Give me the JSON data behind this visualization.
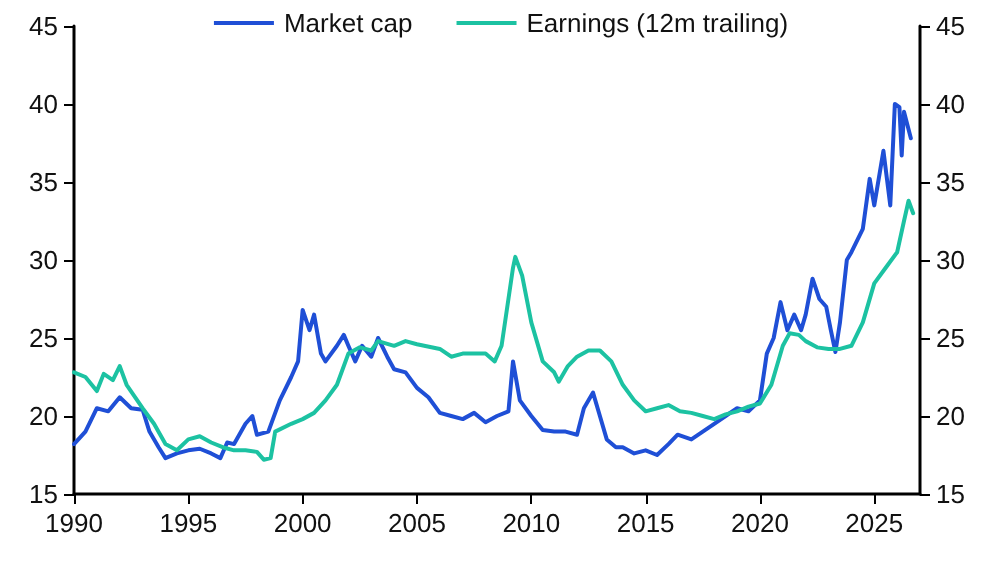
{
  "chart_data": {
    "type": "line",
    "xlim": [
      1990,
      2027
    ],
    "xticks": [
      1990,
      1995,
      2000,
      2005,
      2010,
      2015,
      2020,
      2025
    ],
    "ylim": [
      15,
      45
    ],
    "yticks": [
      15,
      20,
      25,
      30,
      35,
      40,
      45
    ],
    "y2lim": [
      15,
      45
    ],
    "y2ticks": [
      15,
      20,
      25,
      30,
      35,
      40,
      45
    ],
    "grid": false,
    "legend": "top",
    "marker": "none",
    "line_style": "solid",
    "series": [
      {
        "name": "Market cap",
        "color": "#1f4fd6",
        "x": [
          1990,
          1990.5,
          1991,
          1991.5,
          1992,
          1992.5,
          1993,
          1993.3,
          1993.7,
          1994,
          1994.5,
          1995,
          1995.5,
          1996,
          1996.4,
          1996.7,
          1997,
          1997.5,
          1997.8,
          1998,
          1998.5,
          1999,
          1999.5,
          1999.8,
          2000,
          2000.3,
          2000.5,
          2000.8,
          2001,
          2001.5,
          2001.8,
          2002,
          2002.3,
          2002.6,
          2003,
          2003.3,
          2003.7,
          2004,
          2004.5,
          2005,
          2005.5,
          2006,
          2006.5,
          2007,
          2007.5,
          2008,
          2008.5,
          2009,
          2009.2,
          2009.5,
          2010,
          2010.5,
          2011,
          2011.5,
          2012,
          2012.3,
          2012.7,
          2013,
          2013.3,
          2013.7,
          2014,
          2014.5,
          2015,
          2015.5,
          2016,
          2016.4,
          2017,
          2017.5,
          2018,
          2018.5,
          2019,
          2019.5,
          2020,
          2020.3,
          2020.6,
          2020.9,
          2021.2,
          2021.5,
          2021.8,
          2022,
          2022.3,
          2022.6,
          2022.9,
          2023.1,
          2023.3,
          2023.5,
          2023.8,
          2024,
          2024.5,
          2024.8,
          2025,
          2025.4,
          2025.7,
          2025.9,
          2026.1,
          2026.2,
          2026.3,
          2026.6
        ],
        "values": [
          18.2,
          19,
          20.5,
          20.3,
          21.2,
          20.5,
          20.4,
          19,
          18,
          17.3,
          17.6,
          17.8,
          17.9,
          17.6,
          17.3,
          18.3,
          18.2,
          19.5,
          20,
          18.8,
          19,
          21,
          22.5,
          23.5,
          26.8,
          25.5,
          26.5,
          24,
          23.5,
          24.5,
          25.2,
          24.5,
          23.5,
          24.5,
          23.8,
          25,
          23.8,
          23,
          22.8,
          21.8,
          21.2,
          20.2,
          20,
          19.8,
          20.2,
          19.6,
          20,
          20.3,
          23.5,
          21,
          20,
          19.1,
          19,
          19,
          18.8,
          20.5,
          21.5,
          20,
          18.5,
          18,
          18,
          17.6,
          17.8,
          17.5,
          18.2,
          18.8,
          18.5,
          19,
          19.5,
          20,
          20.5,
          20.3,
          21,
          24,
          25,
          27.3,
          25.5,
          26.5,
          25.5,
          26.5,
          28.8,
          27.5,
          27,
          25.5,
          24.1,
          26,
          30,
          30.5,
          32,
          35.2,
          33.5,
          37,
          33.5,
          40,
          39.8,
          36.7,
          39.5,
          37.8
        ]
      },
      {
        "name": "Earnings (12m trailing)",
        "color": "#1cc2a2",
        "x": [
          1990,
          1990.5,
          1991,
          1991.3,
          1991.7,
          1992,
          1992.3,
          1993,
          1993.5,
          1994,
          1994.5,
          1995,
          1995.5,
          1996,
          1996.5,
          1997,
          1997.5,
          1998,
          1998.3,
          1998.6,
          1998.8,
          1999.5,
          2000,
          2000.5,
          2001,
          2001.5,
          2002,
          2002.5,
          2003,
          2003.3,
          2004,
          2004.5,
          2005,
          2006,
          2006.5,
          2007,
          2008,
          2008.4,
          2008.7,
          2009,
          2009.2,
          2009.3,
          2009.6,
          2010,
          2010.5,
          2011,
          2011.2,
          2011.6,
          2012,
          2012.5,
          2013,
          2013.5,
          2014,
          2014.5,
          2015,
          2015.5,
          2016,
          2016.5,
          2017,
          2017.5,
          2018,
          2018.5,
          2019,
          2019.5,
          2020,
          2020.5,
          2021,
          2021.3,
          2021.7,
          2022,
          2022.5,
          2023,
          2023.5,
          2024,
          2024.5,
          2025,
          2025.5,
          2026,
          2026.3,
          2026.5,
          2026.7
        ],
        "values": [
          22.8,
          22.5,
          21.6,
          22.7,
          22.3,
          23.2,
          22,
          20.5,
          19.5,
          18.2,
          17.8,
          18.5,
          18.7,
          18.3,
          18,
          17.8,
          17.8,
          17.7,
          17.2,
          17.3,
          19,
          19.5,
          19.8,
          20.2,
          21,
          22,
          24,
          24.4,
          24.2,
          24.8,
          24.5,
          24.8,
          24.6,
          24.3,
          23.8,
          24,
          24,
          23.5,
          24.5,
          27.5,
          29.5,
          30.2,
          29,
          26,
          23.5,
          22.8,
          22.2,
          23.2,
          23.8,
          24.2,
          24.2,
          23.5,
          22,
          21,
          20.3,
          20.5,
          20.7,
          20.3,
          20.2,
          20,
          19.8,
          20.1,
          20.3,
          20.6,
          20.8,
          22,
          24.5,
          25.3,
          25.2,
          24.8,
          24.4,
          24.3,
          24.3,
          24.5,
          26,
          28.5,
          29.5,
          30.5,
          32.5,
          33.8,
          33
        ]
      }
    ]
  }
}
